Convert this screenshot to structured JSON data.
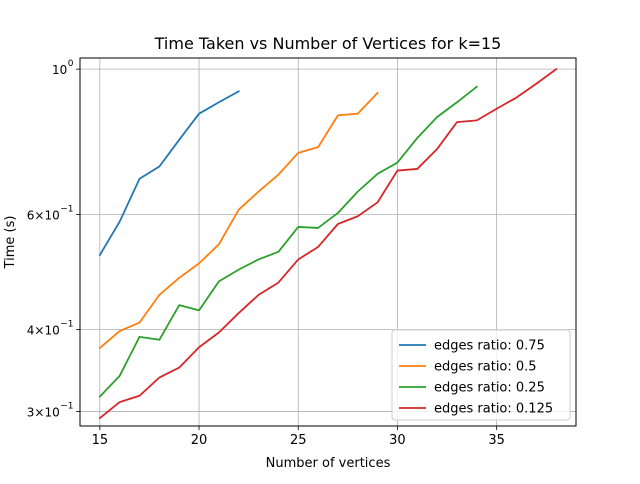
{
  "chart_data": {
    "type": "line",
    "title": "Time Taken vs Number of Vertices for k=15",
    "xlabel": "Number of vertices",
    "ylabel": "Time (s)",
    "xlim": [
      14.0,
      39.0
    ],
    "ylim": [
      0.285,
      1.04
    ],
    "yscale": "log",
    "grid": true,
    "legend_position": "bottom-right",
    "x_ticks": [
      {
        "value": 15,
        "label": "15"
      },
      {
        "value": 20,
        "label": "20"
      },
      {
        "value": 25,
        "label": "25"
      },
      {
        "value": 30,
        "label": "30"
      },
      {
        "value": 35,
        "label": "35"
      }
    ],
    "y_ticks": [
      {
        "value": 0.3,
        "base": "3",
        "exp": "−1",
        "mult": "×"
      },
      {
        "value": 0.4,
        "base": "4",
        "exp": "−1",
        "mult": "×"
      },
      {
        "value": 0.6,
        "base": "6",
        "exp": "−1",
        "mult": "×"
      },
      {
        "value": 1.0,
        "base": "10",
        "exp": "0",
        "mult": ""
      }
    ],
    "series": [
      {
        "name": "edges ratio: 0.75",
        "color": "#1f77b4",
        "x": [
          15,
          16,
          17,
          18,
          19,
          20,
          21,
          22
        ],
        "y": [
          0.52,
          0.585,
          0.68,
          0.71,
          0.78,
          0.855,
          0.89,
          0.925
        ]
      },
      {
        "name": "edges ratio: 0.5",
        "color": "#ff7f0e",
        "x": [
          15,
          16,
          17,
          18,
          19,
          20,
          21,
          22,
          23,
          24,
          25,
          26,
          27,
          28,
          29
        ],
        "y": [
          0.375,
          0.398,
          0.41,
          0.452,
          0.48,
          0.505,
          0.54,
          0.61,
          0.65,
          0.69,
          0.745,
          0.76,
          0.85,
          0.855,
          0.92
        ]
      },
      {
        "name": "edges ratio: 0.25",
        "color": "#2ca02c",
        "x": [
          15,
          16,
          17,
          18,
          19,
          20,
          21,
          22,
          23,
          24,
          25,
          26,
          27,
          28,
          29,
          30,
          31,
          32,
          33,
          34
        ],
        "y": [
          0.316,
          0.34,
          0.39,
          0.386,
          0.436,
          0.428,
          0.474,
          0.494,
          0.512,
          0.526,
          0.574,
          0.572,
          0.603,
          0.65,
          0.692,
          0.72,
          0.785,
          0.845,
          0.89,
          0.94
        ]
      },
      {
        "name": "edges ratio: 0.125",
        "color": "#d62728",
        "x": [
          15,
          16,
          17,
          18,
          19,
          20,
          21,
          22,
          23,
          24,
          25,
          26,
          27,
          28,
          29,
          30,
          31,
          32,
          33,
          34,
          35,
          36,
          37,
          38
        ],
        "y": [
          0.293,
          0.31,
          0.317,
          0.338,
          0.35,
          0.376,
          0.396,
          0.424,
          0.452,
          0.472,
          0.512,
          0.535,
          0.58,
          0.596,
          0.626,
          0.7,
          0.704,
          0.755,
          0.83,
          0.835,
          0.87,
          0.905,
          0.95,
          1.0
        ]
      }
    ]
  }
}
